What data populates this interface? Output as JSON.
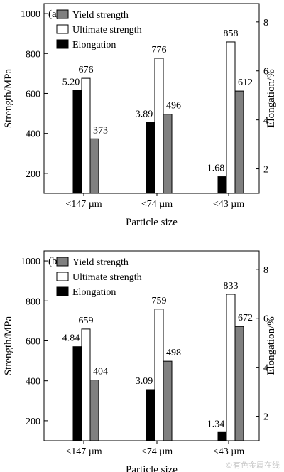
{
  "chart_data": [
    {
      "type": "bar",
      "panel_label": "(a)",
      "categories": [
        "<147 µm",
        "<74 µm",
        "<43 µm"
      ],
      "xlabel": "Particle size",
      "ylabel_left": "Strength/MPa",
      "ylabel_right": "Elongation/%",
      "ylim_left": [
        100,
        1050
      ],
      "yticks_left": [
        200,
        400,
        600,
        800,
        1000
      ],
      "ylim_right": [
        1,
        8.75
      ],
      "yticks_right": [
        2,
        4,
        6,
        8
      ],
      "legend_position": "top-left",
      "series": [
        {
          "name": "Elongation",
          "axis": "right",
          "color": "#000000",
          "values": [
            5.2,
            3.89,
            1.68
          ],
          "labels": [
            "5.20",
            "3.89",
            "1.68"
          ]
        },
        {
          "name": "Ultimate strength",
          "axis": "left",
          "color": "#ffffff",
          "values": [
            676,
            776,
            858
          ],
          "labels": [
            "676",
            "776",
            "858"
          ]
        },
        {
          "name": "Yield strength",
          "axis": "left",
          "color": "#808080",
          "values": [
            373,
            496,
            612
          ],
          "labels": [
            "373",
            "496",
            "612"
          ]
        }
      ],
      "legend_order": [
        "Yield strength",
        "Ultimate strength",
        "Elongation"
      ]
    },
    {
      "type": "bar",
      "panel_label": "(b)",
      "categories": [
        "<147 µm",
        "<74 µm",
        "<43 µm"
      ],
      "xlabel": "Particle size",
      "ylabel_left": "Strength/MPa",
      "ylabel_right": "Elongation/%",
      "ylim_left": [
        100,
        1050
      ],
      "yticks_left": [
        200,
        400,
        600,
        800,
        1000
      ],
      "ylim_right": [
        1,
        8.75
      ],
      "yticks_right": [
        2,
        4,
        6,
        8
      ],
      "legend_position": "top-left",
      "series": [
        {
          "name": "Elongation",
          "axis": "right",
          "color": "#000000",
          "values": [
            4.84,
            3.09,
            1.34
          ],
          "labels": [
            "4.84",
            "3.09",
            "1.34"
          ]
        },
        {
          "name": "Ultimate strength",
          "axis": "left",
          "color": "#ffffff",
          "values": [
            659,
            759,
            833
          ],
          "labels": [
            "659",
            "759",
            "833"
          ]
        },
        {
          "name": "Yield strength",
          "axis": "left",
          "color": "#808080",
          "values": [
            404,
            498,
            672
          ],
          "labels": [
            "404",
            "498",
            "672"
          ]
        }
      ],
      "legend_order": [
        "Yield strength",
        "Ultimate strength",
        "Elongation"
      ]
    }
  ],
  "watermark": "©有色金属在线"
}
